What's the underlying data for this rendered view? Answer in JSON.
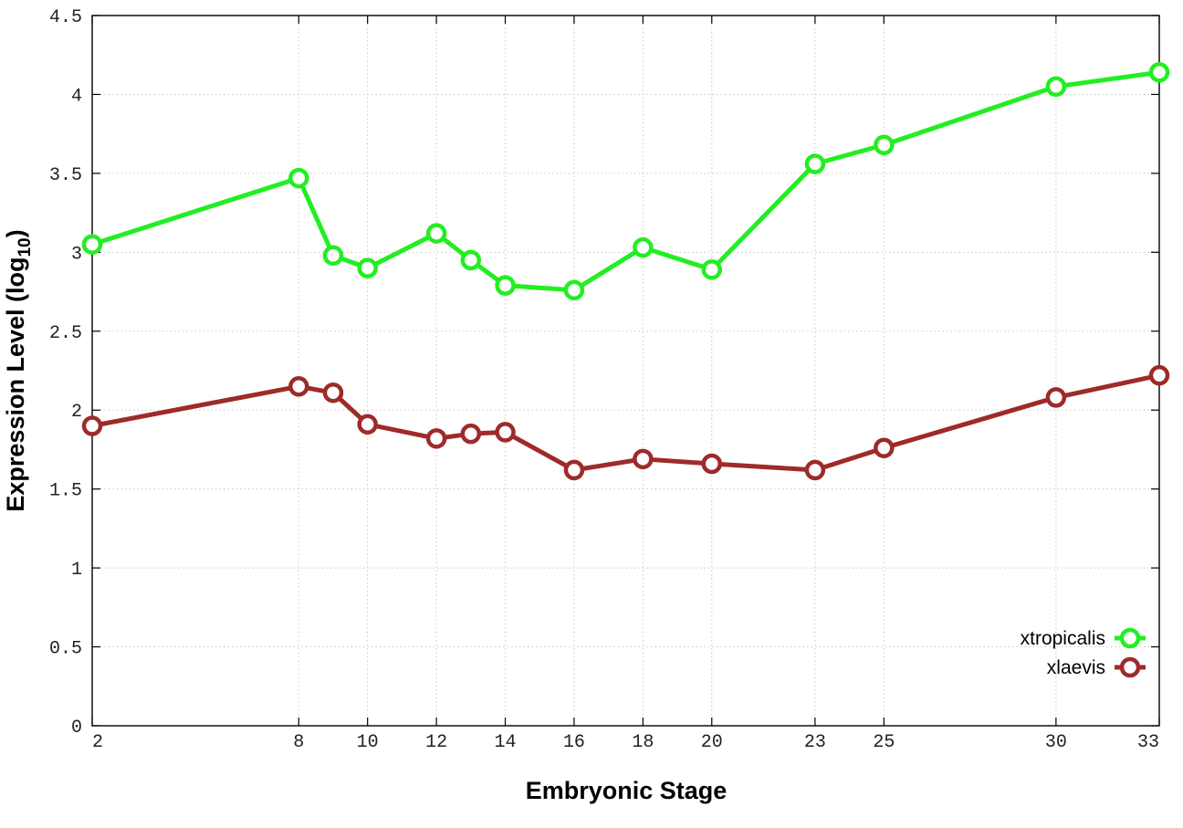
{
  "chart_data": {
    "type": "line",
    "title": "",
    "xlabel": "Embryonic Stage",
    "ylabel": {
      "base": "Expression Level (log",
      "subscript": "10",
      "suffix": ")"
    },
    "x_ticks": [
      "2",
      "8",
      "10",
      "12",
      "14",
      "16",
      "18",
      "20",
      "23",
      "25",
      "30",
      "33"
    ],
    "y_ticks": [
      "0",
      "0.5",
      "1",
      "1.5",
      "2",
      "2.5",
      "3",
      "3.5",
      "4",
      "4.5"
    ],
    "ylim": [
      0,
      4.5
    ],
    "xlim": [
      2,
      33
    ],
    "grid": true,
    "legend_position": "bottom-right",
    "x_positions": [
      2,
      8,
      9,
      10,
      12,
      13,
      14,
      16,
      18,
      20,
      23,
      25,
      30,
      33
    ],
    "series": [
      {
        "name": "xtropicalis",
        "color": "#22ee22",
        "values": [
          3.05,
          3.47,
          2.98,
          2.9,
          3.12,
          2.95,
          2.79,
          2.76,
          3.03,
          2.89,
          3.56,
          3.68,
          4.05,
          4.14
        ]
      },
      {
        "name": "xlaevis",
        "color": "#9e2a2a",
        "values": [
          1.9,
          2.15,
          2.11,
          1.91,
          1.82,
          1.85,
          1.86,
          1.62,
          1.69,
          1.66,
          1.62,
          1.76,
          2.08,
          2.22
        ]
      }
    ]
  }
}
